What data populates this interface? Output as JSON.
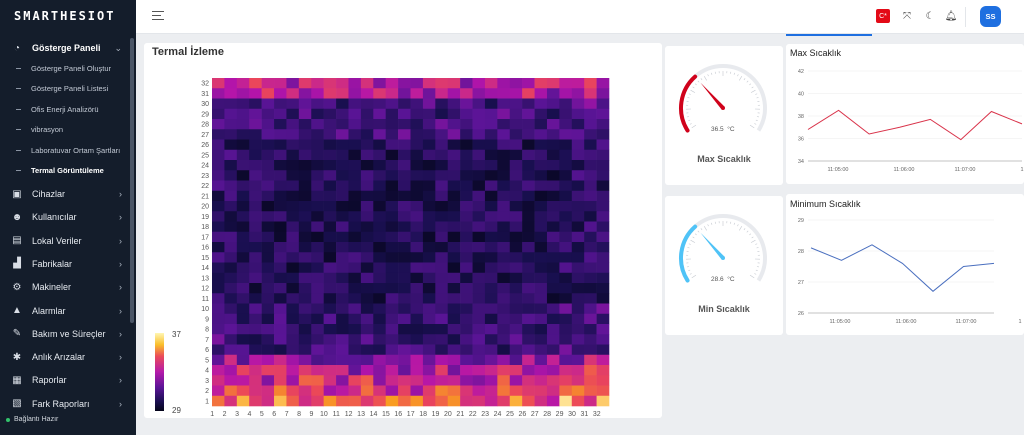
{
  "app": {
    "logo": "SMARTHESIOT"
  },
  "sidebar": {
    "items": [
      {
        "label": "Gösterge Paneli",
        "icon": "dashboard-icon",
        "glyph": "◔",
        "expanded": true
      },
      {
        "label": "Cihazlar",
        "icon": "cpu-icon",
        "glyph": "▣"
      },
      {
        "label": "Kullanıcılar",
        "icon": "users-icon",
        "glyph": "☻"
      },
      {
        "label": "Lokal Veriler",
        "icon": "database-icon",
        "glyph": "▤"
      },
      {
        "label": "Fabrikalar",
        "icon": "factory-icon",
        "glyph": "▟"
      },
      {
        "label": "Makineler",
        "icon": "gears-icon",
        "glyph": "⚙"
      },
      {
        "label": "Alarmlar",
        "icon": "bell-icon",
        "glyph": "▲"
      },
      {
        "label": "Bakım ve Süreçler",
        "icon": "wrench-icon",
        "glyph": "✎"
      },
      {
        "label": "Anlık Arızalar",
        "icon": "bug-icon",
        "glyph": "✱"
      },
      {
        "label": "Raporlar",
        "icon": "report-icon",
        "glyph": "▦"
      },
      {
        "label": "Fark Raporları",
        "icon": "diff-report-icon",
        "glyph": "▧"
      }
    ],
    "subitems": [
      {
        "label": "Gösterge Paneli Oluştur"
      },
      {
        "label": "Gösterge Paneli Listesi"
      },
      {
        "label": "Ofis Enerji Analizörü"
      },
      {
        "label": "vibrasyon"
      },
      {
        "label": "Laboratuvar Ortam Şartları"
      },
      {
        "label": "Termal Görüntüleme",
        "current": true
      }
    ],
    "status": "Bağlantı Hazır"
  },
  "header": {
    "avatar": "SS",
    "flag": "C*"
  },
  "thermal": {
    "title": "Termal İzleme",
    "colorbar_max": "37",
    "colorbar_min": "29",
    "rows": 32,
    "cols": 32
  },
  "max_gauge": {
    "label": "Max Sıcaklık",
    "value": "36.5",
    "unit": "°C",
    "fraction": 0.33,
    "color": "#d0021b"
  },
  "min_gauge": {
    "label": "Min Sıcaklık",
    "value": "28.6",
    "unit": "°C",
    "fraction": 0.33,
    "color": "#4fc3f7"
  },
  "chart_data": [
    {
      "type": "line",
      "title": "Max Sıcaklık",
      "series": [
        {
          "values": [
            36.8,
            38.5,
            36.4,
            37.0,
            37.7,
            35.9,
            38.4,
            37.3
          ],
          "color": "#d9334a"
        }
      ],
      "x": [
        "",
        "11:05:00",
        "",
        "11:06:00",
        "",
        "11:07:00",
        "",
        ""
      ],
      "yticks": [
        34,
        36,
        38,
        40,
        42
      ],
      "ylim": [
        34,
        42
      ],
      "xticks": [
        "11:05:00",
        "11:06:00",
        "11:07:00",
        "1"
      ]
    },
    {
      "type": "line",
      "title": "Minimum Sıcaklık",
      "series": [
        {
          "values": [
            28.1,
            27.7,
            28.2,
            27.6,
            26.7,
            27.5,
            27.6
          ],
          "color": "#4a6fbf"
        }
      ],
      "yticks": [
        26,
        27,
        28,
        29
      ],
      "ylim": [
        26,
        29
      ],
      "xticks": [
        "11:05:00",
        "11:06:00",
        "11:07:00",
        "1"
      ]
    }
  ]
}
